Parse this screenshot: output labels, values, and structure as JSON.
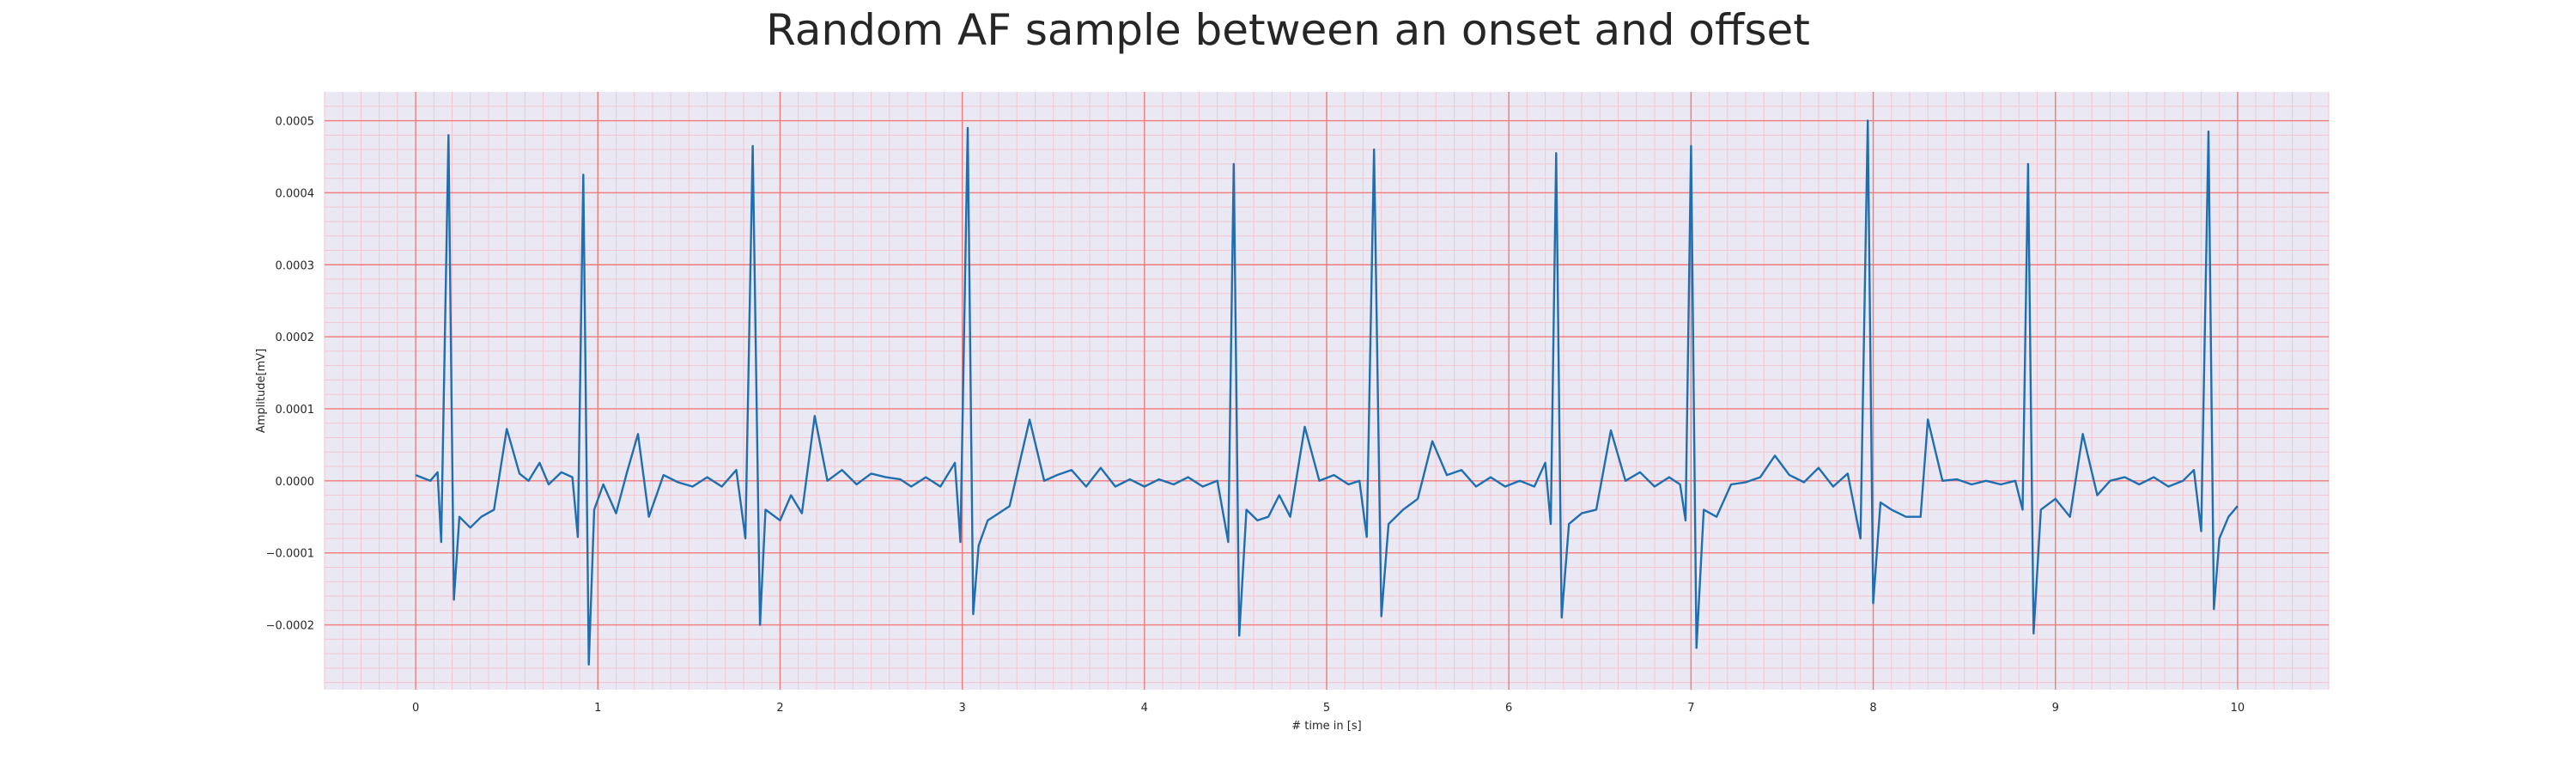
{
  "chart_data": {
    "type": "line",
    "title": "Random AF sample between an onset and offset",
    "xlabel": "# time in [s]",
    "ylabel": "Amplitude[mV]",
    "xlim": [
      -0.5,
      10.5
    ],
    "ylim": [
      -0.00029,
      0.00054
    ],
    "xticks": [
      0,
      1,
      2,
      3,
      4,
      5,
      6,
      7,
      8,
      9,
      10
    ],
    "yticks": [
      -0.0002,
      -0.0001,
      0.0,
      0.0001,
      0.0002,
      0.0003,
      0.0004,
      0.0005
    ],
    "ytick_labels": [
      "−0.0002",
      "−0.0001",
      "0.0000",
      "0.0001",
      "0.0002",
      "0.0003",
      "0.0004",
      "0.0005"
    ],
    "grid": true,
    "colors": {
      "line": "#1f6fb0",
      "plot_background": "#eae8f2",
      "major_grid": "#f07b7b",
      "minor_grid": "#f4c6cf"
    },
    "series": [
      {
        "values": [
          {
            "x": 0.0,
            "y": 8e-06
          },
          {
            "x": 0.04,
            "y": 4e-06
          },
          {
            "x": 0.08,
            "y": 0.0
          },
          {
            "x": 0.12,
            "y": 1.2e-05
          },
          {
            "x": 0.14,
            "y": -8.5e-05
          },
          {
            "x": 0.18,
            "y": 0.00048
          },
          {
            "x": 0.21,
            "y": -0.000165
          },
          {
            "x": 0.24,
            "y": -5e-05
          },
          {
            "x": 0.3,
            "y": -6.5e-05
          },
          {
            "x": 0.36,
            "y": -5e-05
          },
          {
            "x": 0.43,
            "y": -4e-05
          },
          {
            "x": 0.5,
            "y": 7.2e-05
          },
          {
            "x": 0.57,
            "y": 1e-05
          },
          {
            "x": 0.62,
            "y": 0.0
          },
          {
            "x": 0.68,
            "y": 2.5e-05
          },
          {
            "x": 0.73,
            "y": -5e-06
          },
          {
            "x": 0.8,
            "y": 1.2e-05
          },
          {
            "x": 0.86,
            "y": 5e-06
          },
          {
            "x": 0.89,
            "y": -7.8e-05
          },
          {
            "x": 0.92,
            "y": 0.000425
          },
          {
            "x": 0.95,
            "y": -0.000255
          },
          {
            "x": 0.98,
            "y": -4e-05
          },
          {
            "x": 1.03,
            "y": -5e-06
          },
          {
            "x": 1.1,
            "y": -4.5e-05
          },
          {
            "x": 1.16,
            "y": 1.2e-05
          },
          {
            "x": 1.22,
            "y": 6.5e-05
          },
          {
            "x": 1.28,
            "y": -5e-05
          },
          {
            "x": 1.36,
            "y": 8e-06
          },
          {
            "x": 1.44,
            "y": -2e-06
          },
          {
            "x": 1.52,
            "y": -8e-06
          },
          {
            "x": 1.6,
            "y": 5e-06
          },
          {
            "x": 1.68,
            "y": -8e-06
          },
          {
            "x": 1.76,
            "y": 1.5e-05
          },
          {
            "x": 1.81,
            "y": -8e-05
          },
          {
            "x": 1.85,
            "y": 0.000465
          },
          {
            "x": 1.89,
            "y": -0.0002
          },
          {
            "x": 1.92,
            "y": -4e-05
          },
          {
            "x": 2.0,
            "y": -5.5e-05
          },
          {
            "x": 2.06,
            "y": -2e-05
          },
          {
            "x": 2.12,
            "y": -4.5e-05
          },
          {
            "x": 2.19,
            "y": 9e-05
          },
          {
            "x": 2.26,
            "y": 0.0
          },
          {
            "x": 2.34,
            "y": 1.5e-05
          },
          {
            "x": 2.42,
            "y": -5e-06
          },
          {
            "x": 2.5,
            "y": 1e-05
          },
          {
            "x": 2.58,
            "y": 5e-06
          },
          {
            "x": 2.66,
            "y": 2e-06
          },
          {
            "x": 2.72,
            "y": -8e-06
          },
          {
            "x": 2.8,
            "y": 5e-06
          },
          {
            "x": 2.88,
            "y": -8e-06
          },
          {
            "x": 2.96,
            "y": 2.5e-05
          },
          {
            "x": 2.99,
            "y": -8.5e-05
          },
          {
            "x": 3.03,
            "y": 0.00049
          },
          {
            "x": 3.06,
            "y": -0.000185
          },
          {
            "x": 3.09,
            "y": -9e-05
          },
          {
            "x": 3.14,
            "y": -5.5e-05
          },
          {
            "x": 3.2,
            "y": -4.5e-05
          },
          {
            "x": 3.26,
            "y": -3.5e-05
          },
          {
            "x": 3.37,
            "y": 8.5e-05
          },
          {
            "x": 3.45,
            "y": 0.0
          },
          {
            "x": 3.52,
            "y": 8e-06
          },
          {
            "x": 3.6,
            "y": 1.5e-05
          },
          {
            "x": 3.68,
            "y": -8e-06
          },
          {
            "x": 3.76,
            "y": 1.8e-05
          },
          {
            "x": 3.84,
            "y": -8e-06
          },
          {
            "x": 3.92,
            "y": 2e-06
          },
          {
            "x": 4.0,
            "y": -8e-06
          },
          {
            "x": 4.08,
            "y": 2e-06
          },
          {
            "x": 4.16,
            "y": -5e-06
          },
          {
            "x": 4.24,
            "y": 5e-06
          },
          {
            "x": 4.32,
            "y": -8e-06
          },
          {
            "x": 4.4,
            "y": 0.0
          },
          {
            "x": 4.46,
            "y": -8.5e-05
          },
          {
            "x": 4.49,
            "y": 0.00044
          },
          {
            "x": 4.52,
            "y": -0.000215
          },
          {
            "x": 4.56,
            "y": -4e-05
          },
          {
            "x": 4.62,
            "y": -5.5e-05
          },
          {
            "x": 4.68,
            "y": -5e-05
          },
          {
            "x": 4.74,
            "y": -2e-05
          },
          {
            "x": 4.8,
            "y": -5e-05
          },
          {
            "x": 4.88,
            "y": 7.5e-05
          },
          {
            "x": 4.96,
            "y": 0.0
          },
          {
            "x": 5.04,
            "y": 8e-06
          },
          {
            "x": 5.12,
            "y": -5e-06
          },
          {
            "x": 5.18,
            "y": 0.0
          },
          {
            "x": 5.22,
            "y": -7.8e-05
          },
          {
            "x": 5.26,
            "y": 0.00046
          },
          {
            "x": 5.3,
            "y": -0.000188
          },
          {
            "x": 5.34,
            "y": -6e-05
          },
          {
            "x": 5.42,
            "y": -4e-05
          },
          {
            "x": 5.5,
            "y": -2.5e-05
          },
          {
            "x": 5.58,
            "y": 5.5e-05
          },
          {
            "x": 5.66,
            "y": 8e-06
          },
          {
            "x": 5.74,
            "y": 1.5e-05
          },
          {
            "x": 5.82,
            "y": -8e-06
          },
          {
            "x": 5.9,
            "y": 5e-06
          },
          {
            "x": 5.98,
            "y": -8e-06
          },
          {
            "x": 6.06,
            "y": 0.0
          },
          {
            "x": 6.14,
            "y": -8e-06
          },
          {
            "x": 6.2,
            "y": 2.5e-05
          },
          {
            "x": 6.23,
            "y": -6e-05
          },
          {
            "x": 6.26,
            "y": 0.000455
          },
          {
            "x": 6.29,
            "y": -0.00019
          },
          {
            "x": 6.33,
            "y": -6e-05
          },
          {
            "x": 6.4,
            "y": -4.5e-05
          },
          {
            "x": 6.48,
            "y": -4e-05
          },
          {
            "x": 6.56,
            "y": 7e-05
          },
          {
            "x": 6.64,
            "y": 0.0
          },
          {
            "x": 6.72,
            "y": 1.2e-05
          },
          {
            "x": 6.8,
            "y": -8e-06
          },
          {
            "x": 6.88,
            "y": 5e-06
          },
          {
            "x": 6.94,
            "y": -5e-06
          },
          {
            "x": 6.97,
            "y": -5.5e-05
          },
          {
            "x": 7.0,
            "y": 0.000465
          },
          {
            "x": 7.03,
            "y": -0.000232
          },
          {
            "x": 7.07,
            "y": -4e-05
          },
          {
            "x": 7.14,
            "y": -5e-05
          },
          {
            "x": 7.22,
            "y": -5e-06
          },
          {
            "x": 7.3,
            "y": -2e-06
          },
          {
            "x": 7.38,
            "y": 5e-06
          },
          {
            "x": 7.46,
            "y": 3.5e-05
          },
          {
            "x": 7.54,
            "y": 8e-06
          },
          {
            "x": 7.62,
            "y": -2e-06
          },
          {
            "x": 7.7,
            "y": 1.8e-05
          },
          {
            "x": 7.78,
            "y": -8e-06
          },
          {
            "x": 7.86,
            "y": 1e-05
          },
          {
            "x": 7.93,
            "y": -8e-05
          },
          {
            "x": 7.97,
            "y": 0.0005
          },
          {
            "x": 8.0,
            "y": -0.00017
          },
          {
            "x": 8.04,
            "y": -3e-05
          },
          {
            "x": 8.1,
            "y": -4e-05
          },
          {
            "x": 8.18,
            "y": -5e-05
          },
          {
            "x": 8.26,
            "y": -5e-05
          },
          {
            "x": 8.3,
            "y": 8.5e-05
          },
          {
            "x": 8.38,
            "y": 0.0
          },
          {
            "x": 8.46,
            "y": 2e-06
          },
          {
            "x": 8.54,
            "y": -5e-06
          },
          {
            "x": 8.62,
            "y": 0.0
          },
          {
            "x": 8.7,
            "y": -5e-06
          },
          {
            "x": 8.78,
            "y": 0.0
          },
          {
            "x": 8.82,
            "y": -4e-05
          },
          {
            "x": 8.85,
            "y": 0.00044
          },
          {
            "x": 8.88,
            "y": -0.000212
          },
          {
            "x": 8.92,
            "y": -4e-05
          },
          {
            "x": 9.0,
            "y": -2.5e-05
          },
          {
            "x": 9.08,
            "y": -5e-05
          },
          {
            "x": 9.15,
            "y": 6.5e-05
          },
          {
            "x": 9.23,
            "y": -2e-05
          },
          {
            "x": 9.3,
            "y": 0.0
          },
          {
            "x": 9.38,
            "y": 5e-06
          },
          {
            "x": 9.46,
            "y": -5e-06
          },
          {
            "x": 9.54,
            "y": 5e-06
          },
          {
            "x": 9.62,
            "y": -8e-06
          },
          {
            "x": 9.7,
            "y": 0.0
          },
          {
            "x": 9.76,
            "y": 1.5e-05
          },
          {
            "x": 9.8,
            "y": -7e-05
          },
          {
            "x": 9.84,
            "y": 0.000485
          },
          {
            "x": 9.87,
            "y": -0.000178
          },
          {
            "x": 9.9,
            "y": -8e-05
          },
          {
            "x": 9.95,
            "y": -5e-05
          },
          {
            "x": 10.0,
            "y": -3.5e-05
          }
        ]
      }
    ]
  }
}
